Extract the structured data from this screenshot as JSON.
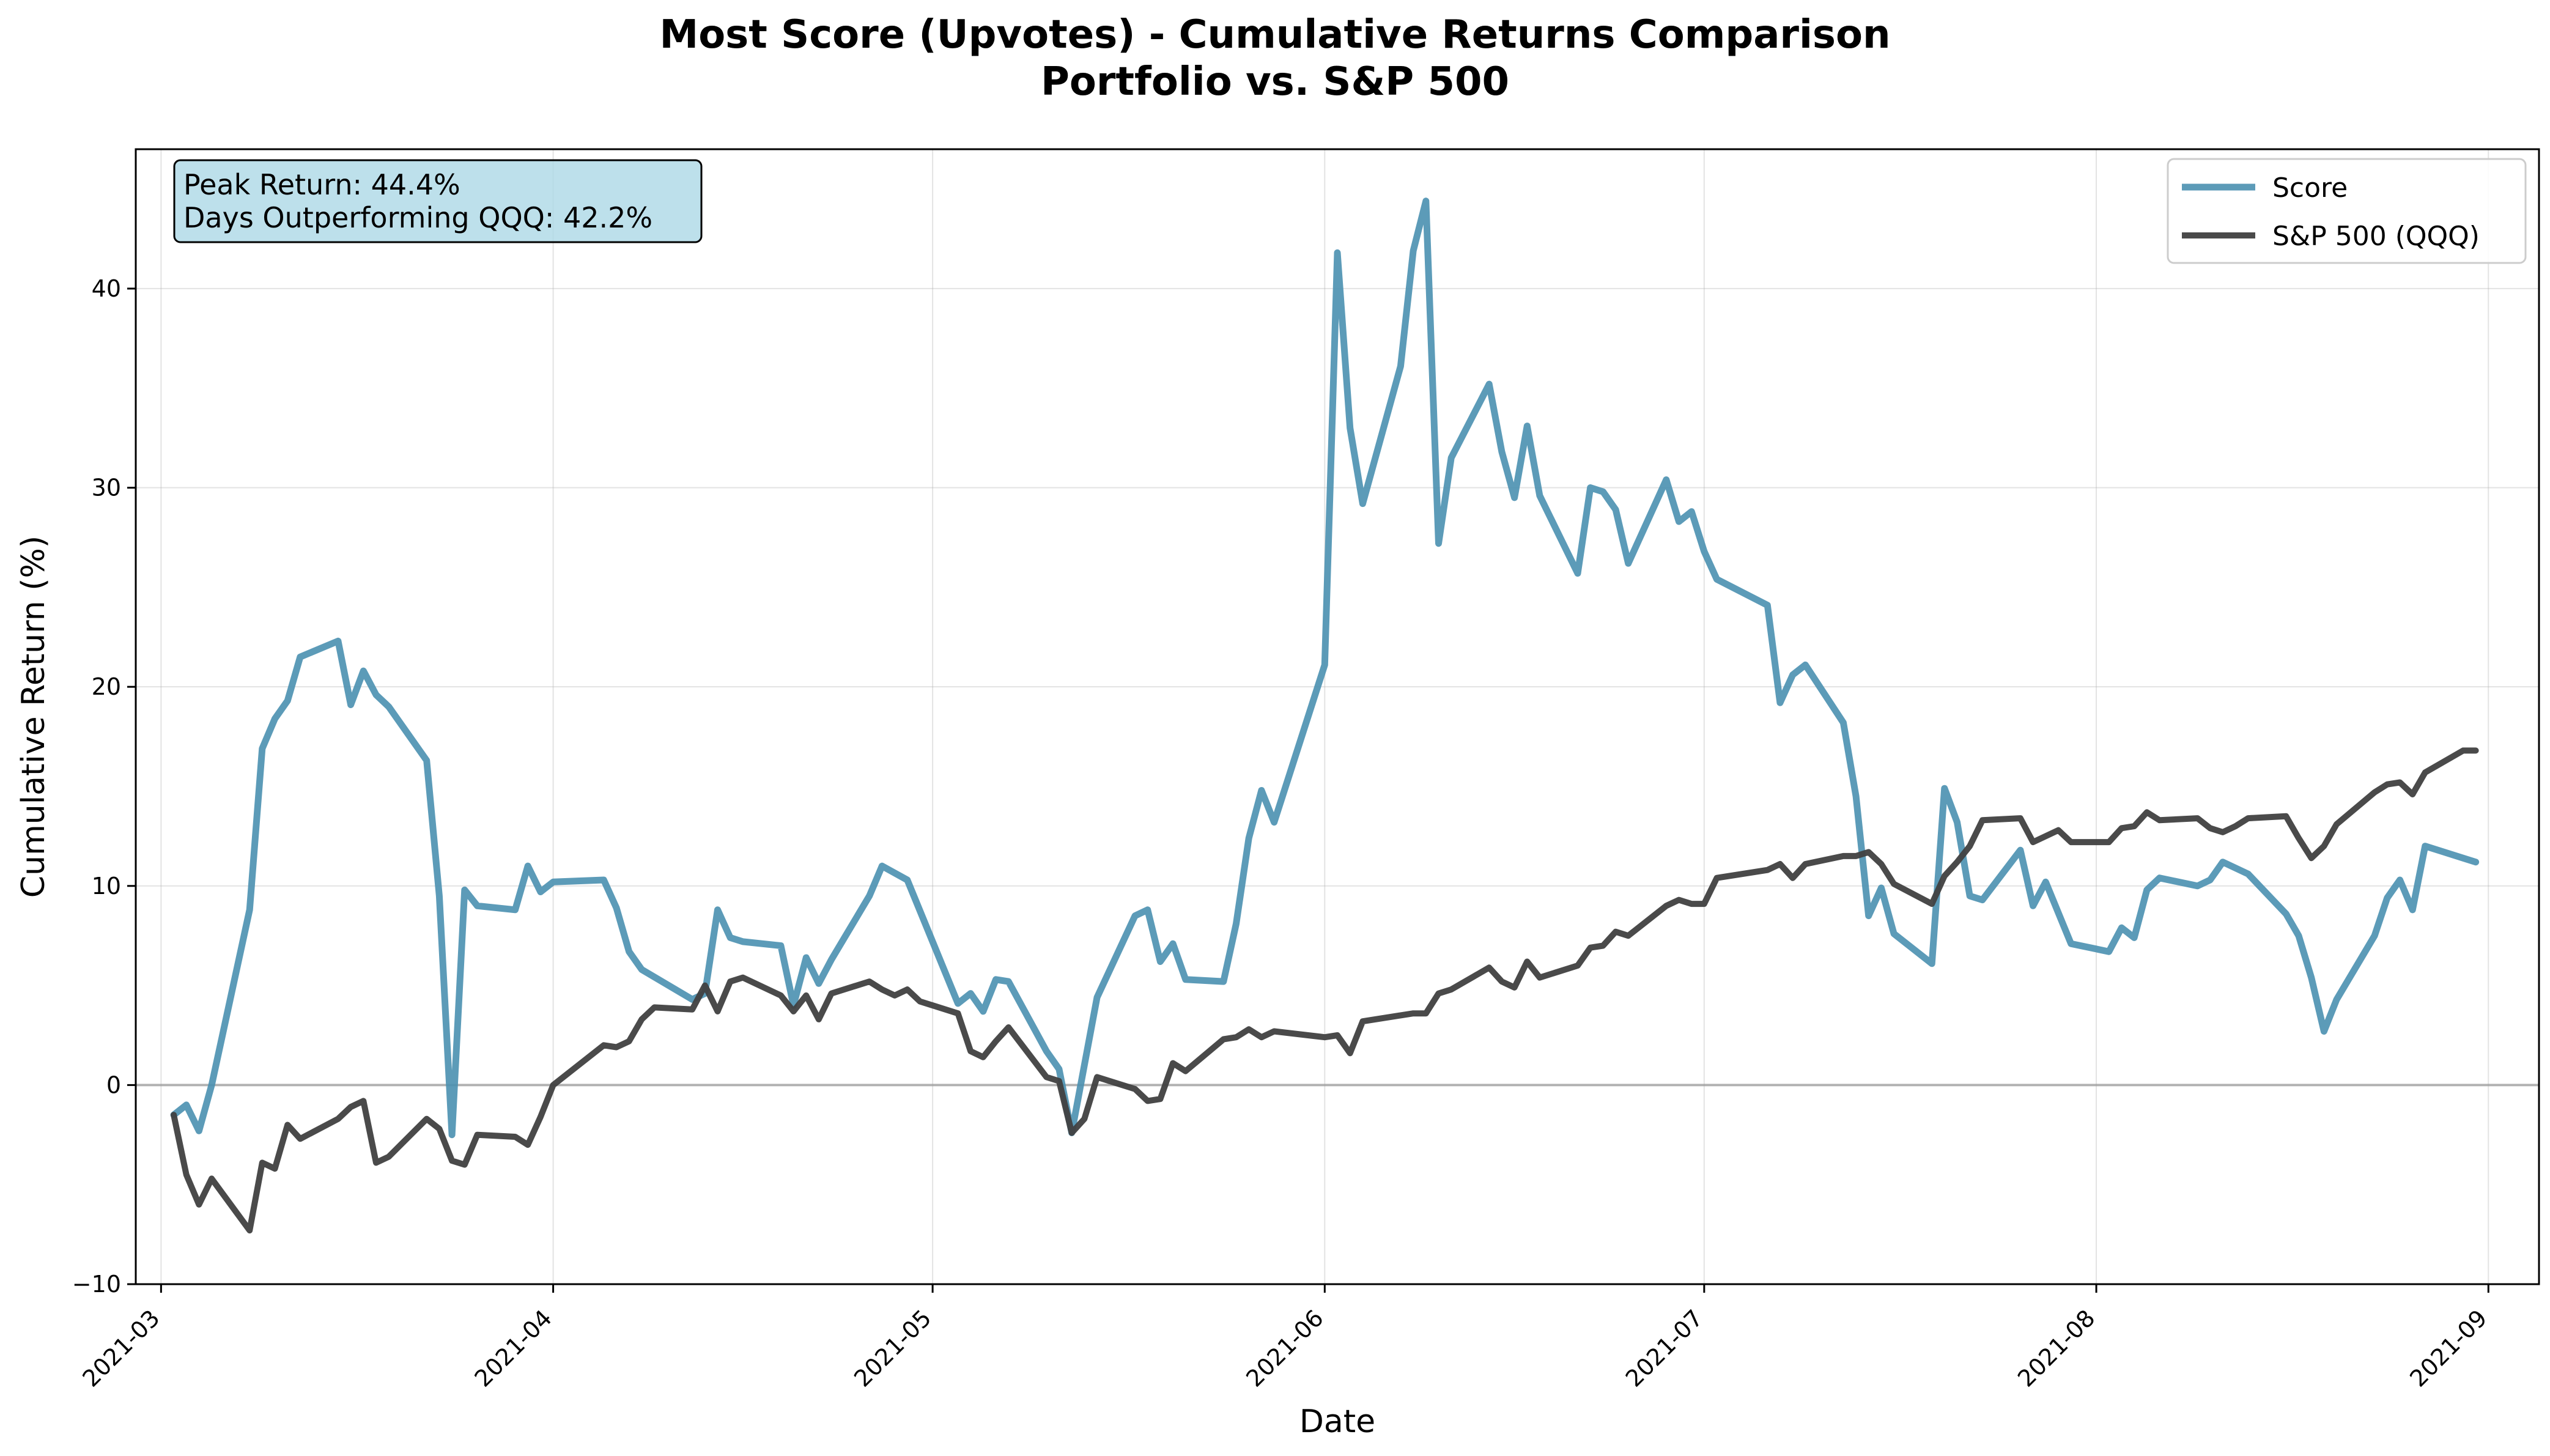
{
  "chart_data": {
    "type": "line",
    "title_line1": "Most Score (Upvotes) - Cumulative Returns Comparison",
    "title_line2": "Portfolio vs. S&P 500",
    "xlabel": "Date",
    "ylabel": "Cumulative Return (%)",
    "xlim": [
      "2021-02-27",
      "2021-09-05"
    ],
    "ylim": [
      -10,
      47
    ],
    "x_ticks": [
      "2021-03-01",
      "2021-04-01",
      "2021-05-01",
      "2021-06-01",
      "2021-07-01",
      "2021-08-01",
      "2021-09-01"
    ],
    "x_tick_labels": [
      "2021-03",
      "2021-04",
      "2021-05",
      "2021-06",
      "2021-07",
      "2021-08",
      "2021-09"
    ],
    "y_ticks": [
      -10,
      0,
      10,
      20,
      30,
      40
    ],
    "y_tick_labels": [
      "−10",
      "0",
      "10",
      "20",
      "30",
      "40"
    ],
    "grid": true,
    "zero_line": true,
    "legend_position": "top-right",
    "annotation": [
      "Peak Return: 44.4%",
      "Days Outperforming QQQ: 42.2%"
    ],
    "series": [
      {
        "name": "Score",
        "color": "#4a90b0",
        "points": [
          [
            "2021-03-02",
            -1.5
          ],
          [
            "2021-03-03",
            -1.0
          ],
          [
            "2021-03-04",
            -2.3
          ],
          [
            "2021-03-05",
            0.0
          ],
          [
            "2021-03-08",
            8.8
          ],
          [
            "2021-03-09",
            16.9
          ],
          [
            "2021-03-10",
            18.4
          ],
          [
            "2021-03-11",
            19.3
          ],
          [
            "2021-03-12",
            21.5
          ],
          [
            "2021-03-15",
            22.3
          ],
          [
            "2021-03-16",
            19.1
          ],
          [
            "2021-03-17",
            20.8
          ],
          [
            "2021-03-18",
            19.6
          ],
          [
            "2021-03-19",
            19.0
          ],
          [
            "2021-03-22",
            16.3
          ],
          [
            "2021-03-23",
            9.5
          ],
          [
            "2021-03-24",
            -2.5
          ],
          [
            "2021-03-25",
            9.8
          ],
          [
            "2021-03-26",
            9.0
          ],
          [
            "2021-03-29",
            8.8
          ],
          [
            "2021-03-30",
            11.0
          ],
          [
            "2021-03-31",
            9.7
          ],
          [
            "2021-04-01",
            10.2
          ],
          [
            "2021-04-05",
            10.3
          ],
          [
            "2021-04-06",
            8.9
          ],
          [
            "2021-04-07",
            6.7
          ],
          [
            "2021-04-08",
            5.8
          ],
          [
            "2021-04-12",
            4.3
          ],
          [
            "2021-04-13",
            4.6
          ],
          [
            "2021-04-14",
            8.8
          ],
          [
            "2021-04-15",
            7.4
          ],
          [
            "2021-04-16",
            7.2
          ],
          [
            "2021-04-19",
            7.0
          ],
          [
            "2021-04-20",
            4.0
          ],
          [
            "2021-04-21",
            6.4
          ],
          [
            "2021-04-22",
            5.1
          ],
          [
            "2021-04-23",
            6.3
          ],
          [
            "2021-04-26",
            9.5
          ],
          [
            "2021-04-27",
            11.0
          ],
          [
            "2021-04-29",
            10.3
          ],
          [
            "2021-05-03",
            4.1
          ],
          [
            "2021-05-04",
            4.6
          ],
          [
            "2021-05-05",
            3.7
          ],
          [
            "2021-05-06",
            5.3
          ],
          [
            "2021-05-07",
            5.2
          ],
          [
            "2021-05-10",
            1.7
          ],
          [
            "2021-05-11",
            0.8
          ],
          [
            "2021-05-12",
            -2.4
          ],
          [
            "2021-05-13",
            1.0
          ],
          [
            "2021-05-14",
            4.4
          ],
          [
            "2021-05-17",
            8.5
          ],
          [
            "2021-05-18",
            8.8
          ],
          [
            "2021-05-19",
            6.2
          ],
          [
            "2021-05-20",
            7.1
          ],
          [
            "2021-05-21",
            5.3
          ],
          [
            "2021-05-24",
            5.2
          ],
          [
            "2021-05-25",
            8.1
          ],
          [
            "2021-05-26",
            12.4
          ],
          [
            "2021-05-27",
            14.8
          ],
          [
            "2021-05-28",
            13.2
          ],
          [
            "2021-06-01",
            21.1
          ],
          [
            "2021-06-02",
            41.8
          ],
          [
            "2021-06-03",
            33.0
          ],
          [
            "2021-06-04",
            29.2
          ],
          [
            "2021-06-07",
            36.1
          ],
          [
            "2021-06-08",
            41.9
          ],
          [
            "2021-06-09",
            44.4
          ],
          [
            "2021-06-10",
            27.2
          ],
          [
            "2021-06-11",
            31.5
          ],
          [
            "2021-06-14",
            35.2
          ],
          [
            "2021-06-15",
            31.8
          ],
          [
            "2021-06-16",
            29.5
          ],
          [
            "2021-06-17",
            33.1
          ],
          [
            "2021-06-18",
            29.6
          ],
          [
            "2021-06-21",
            25.7
          ],
          [
            "2021-06-22",
            30.0
          ],
          [
            "2021-06-23",
            29.8
          ],
          [
            "2021-06-24",
            28.9
          ],
          [
            "2021-06-25",
            26.2
          ],
          [
            "2021-06-28",
            30.4
          ],
          [
            "2021-06-29",
            28.3
          ],
          [
            "2021-06-30",
            28.8
          ],
          [
            "2021-07-01",
            26.8
          ],
          [
            "2021-07-02",
            25.4
          ],
          [
            "2021-07-06",
            24.1
          ],
          [
            "2021-07-07",
            19.2
          ],
          [
            "2021-07-08",
            20.6
          ],
          [
            "2021-07-09",
            21.1
          ],
          [
            "2021-07-12",
            18.2
          ],
          [
            "2021-07-13",
            14.5
          ],
          [
            "2021-07-14",
            8.5
          ],
          [
            "2021-07-15",
            9.9
          ],
          [
            "2021-07-16",
            7.6
          ],
          [
            "2021-07-19",
            6.1
          ],
          [
            "2021-07-20",
            14.9
          ],
          [
            "2021-07-21",
            13.2
          ],
          [
            "2021-07-22",
            9.5
          ],
          [
            "2021-07-23",
            9.3
          ],
          [
            "2021-07-26",
            11.8
          ],
          [
            "2021-07-27",
            9.0
          ],
          [
            "2021-07-28",
            10.2
          ],
          [
            "2021-07-30",
            7.1
          ],
          [
            "2021-08-02",
            6.7
          ],
          [
            "2021-08-03",
            7.9
          ],
          [
            "2021-08-04",
            7.4
          ],
          [
            "2021-08-05",
            9.8
          ],
          [
            "2021-08-06",
            10.4
          ],
          [
            "2021-08-09",
            10.0
          ],
          [
            "2021-08-10",
            10.3
          ],
          [
            "2021-08-11",
            11.2
          ],
          [
            "2021-08-13",
            10.6
          ],
          [
            "2021-08-16",
            8.6
          ],
          [
            "2021-08-17",
            7.5
          ],
          [
            "2021-08-18",
            5.4
          ],
          [
            "2021-08-19",
            2.7
          ],
          [
            "2021-08-20",
            4.3
          ],
          [
            "2021-08-23",
            7.5
          ],
          [
            "2021-08-24",
            9.4
          ],
          [
            "2021-08-25",
            10.3
          ],
          [
            "2021-08-26",
            8.8
          ],
          [
            "2021-08-27",
            12.0
          ],
          [
            "2021-08-30",
            11.4
          ],
          [
            "2021-08-31",
            11.2
          ]
        ]
      },
      {
        "name": "S&P 500 (QQQ)",
        "color": "#404040",
        "points": [
          [
            "2021-03-02",
            -1.5
          ],
          [
            "2021-03-03",
            -4.5
          ],
          [
            "2021-03-04",
            -6.0
          ],
          [
            "2021-03-05",
            -4.7
          ],
          [
            "2021-03-08",
            -7.3
          ],
          [
            "2021-03-09",
            -3.9
          ],
          [
            "2021-03-10",
            -4.2
          ],
          [
            "2021-03-11",
            -2.0
          ],
          [
            "2021-03-12",
            -2.7
          ],
          [
            "2021-03-15",
            -1.7
          ],
          [
            "2021-03-16",
            -1.1
          ],
          [
            "2021-03-17",
            -0.8
          ],
          [
            "2021-03-18",
            -3.9
          ],
          [
            "2021-03-19",
            -3.6
          ],
          [
            "2021-03-22",
            -1.7
          ],
          [
            "2021-03-23",
            -2.2
          ],
          [
            "2021-03-24",
            -3.8
          ],
          [
            "2021-03-25",
            -4.0
          ],
          [
            "2021-03-26",
            -2.5
          ],
          [
            "2021-03-29",
            -2.6
          ],
          [
            "2021-03-30",
            -3.0
          ],
          [
            "2021-03-31",
            -1.6
          ],
          [
            "2021-04-01",
            0.0
          ],
          [
            "2021-04-05",
            2.0
          ],
          [
            "2021-04-06",
            1.9
          ],
          [
            "2021-04-07",
            2.2
          ],
          [
            "2021-04-08",
            3.3
          ],
          [
            "2021-04-09",
            3.9
          ],
          [
            "2021-04-12",
            3.8
          ],
          [
            "2021-04-13",
            5.0
          ],
          [
            "2021-04-14",
            3.7
          ],
          [
            "2021-04-15",
            5.2
          ],
          [
            "2021-04-16",
            5.4
          ],
          [
            "2021-04-19",
            4.5
          ],
          [
            "2021-04-20",
            3.7
          ],
          [
            "2021-04-21",
            4.5
          ],
          [
            "2021-04-22",
            3.3
          ],
          [
            "2021-04-23",
            4.6
          ],
          [
            "2021-04-26",
            5.2
          ],
          [
            "2021-04-27",
            4.8
          ],
          [
            "2021-04-28",
            4.5
          ],
          [
            "2021-04-29",
            4.8
          ],
          [
            "2021-04-30",
            4.2
          ],
          [
            "2021-05-03",
            3.6
          ],
          [
            "2021-05-04",
            1.7
          ],
          [
            "2021-05-05",
            1.4
          ],
          [
            "2021-05-06",
            2.2
          ],
          [
            "2021-05-07",
            2.9
          ],
          [
            "2021-05-10",
            0.4
          ],
          [
            "2021-05-11",
            0.2
          ],
          [
            "2021-05-12",
            -2.4
          ],
          [
            "2021-05-13",
            -1.7
          ],
          [
            "2021-05-14",
            0.4
          ],
          [
            "2021-05-17",
            -0.2
          ],
          [
            "2021-05-18",
            -0.8
          ],
          [
            "2021-05-19",
            -0.7
          ],
          [
            "2021-05-20",
            1.1
          ],
          [
            "2021-05-21",
            0.7
          ],
          [
            "2021-05-24",
            2.3
          ],
          [
            "2021-05-25",
            2.4
          ],
          [
            "2021-05-26",
            2.8
          ],
          [
            "2021-05-27",
            2.4
          ],
          [
            "2021-05-28",
            2.7
          ],
          [
            "2021-06-01",
            2.4
          ],
          [
            "2021-06-02",
            2.5
          ],
          [
            "2021-06-03",
            1.6
          ],
          [
            "2021-06-04",
            3.2
          ],
          [
            "2021-06-07",
            3.5
          ],
          [
            "2021-06-08",
            3.6
          ],
          [
            "2021-06-09",
            3.6
          ],
          [
            "2021-06-10",
            4.6
          ],
          [
            "2021-06-11",
            4.8
          ],
          [
            "2021-06-14",
            5.9
          ],
          [
            "2021-06-15",
            5.2
          ],
          [
            "2021-06-16",
            4.9
          ],
          [
            "2021-06-17",
            6.2
          ],
          [
            "2021-06-18",
            5.4
          ],
          [
            "2021-06-21",
            6.0
          ],
          [
            "2021-06-22",
            6.9
          ],
          [
            "2021-06-23",
            7.0
          ],
          [
            "2021-06-24",
            7.7
          ],
          [
            "2021-06-25",
            7.5
          ],
          [
            "2021-06-28",
            9.0
          ],
          [
            "2021-06-29",
            9.3
          ],
          [
            "2021-06-30",
            9.1
          ],
          [
            "2021-07-01",
            9.1
          ],
          [
            "2021-07-02",
            10.4
          ],
          [
            "2021-07-06",
            10.8
          ],
          [
            "2021-07-07",
            11.1
          ],
          [
            "2021-07-08",
            10.4
          ],
          [
            "2021-07-09",
            11.1
          ],
          [
            "2021-07-12",
            11.5
          ],
          [
            "2021-07-13",
            11.5
          ],
          [
            "2021-07-14",
            11.7
          ],
          [
            "2021-07-15",
            11.1
          ],
          [
            "2021-07-16",
            10.1
          ],
          [
            "2021-07-19",
            9.1
          ],
          [
            "2021-07-20",
            10.5
          ],
          [
            "2021-07-21",
            11.2
          ],
          [
            "2021-07-22",
            12.0
          ],
          [
            "2021-07-23",
            13.3
          ],
          [
            "2021-07-26",
            13.4
          ],
          [
            "2021-07-27",
            12.2
          ],
          [
            "2021-07-28",
            12.5
          ],
          [
            "2021-07-29",
            12.8
          ],
          [
            "2021-07-30",
            12.2
          ],
          [
            "2021-08-02",
            12.2
          ],
          [
            "2021-08-03",
            12.9
          ],
          [
            "2021-08-04",
            13.0
          ],
          [
            "2021-08-05",
            13.7
          ],
          [
            "2021-08-06",
            13.3
          ],
          [
            "2021-08-09",
            13.4
          ],
          [
            "2021-08-10",
            12.9
          ],
          [
            "2021-08-11",
            12.7
          ],
          [
            "2021-08-12",
            13.0
          ],
          [
            "2021-08-13",
            13.4
          ],
          [
            "2021-08-16",
            13.5
          ],
          [
            "2021-08-17",
            12.4
          ],
          [
            "2021-08-18",
            11.4
          ],
          [
            "2021-08-19",
            12.0
          ],
          [
            "2021-08-20",
            13.1
          ],
          [
            "2021-08-23",
            14.7
          ],
          [
            "2021-08-24",
            15.1
          ],
          [
            "2021-08-25",
            15.2
          ],
          [
            "2021-08-26",
            14.6
          ],
          [
            "2021-08-27",
            15.7
          ],
          [
            "2021-08-30",
            16.8
          ],
          [
            "2021-08-31",
            16.8
          ]
        ]
      }
    ]
  }
}
